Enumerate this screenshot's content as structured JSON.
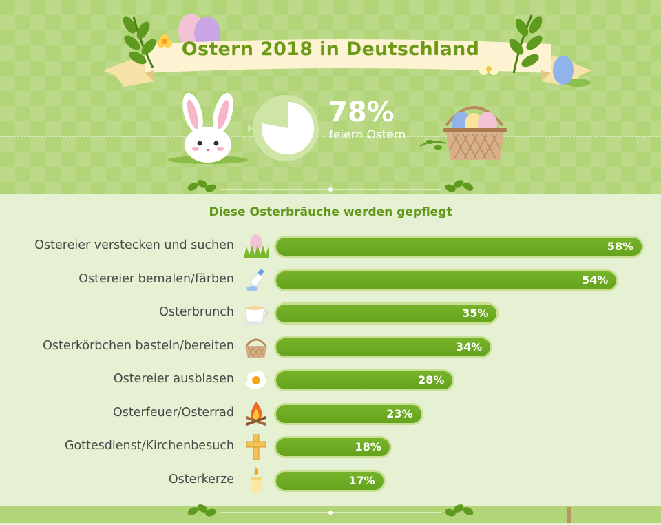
{
  "title": "Ostern 2018 in Deutschland",
  "stat": {
    "value": "78%",
    "label": "feiern Ostern",
    "fraction": 0.78
  },
  "chart_data": {
    "type": "bar",
    "orientation": "horizontal",
    "title": "Diese Osterbräuche werden gepflegt",
    "categories": [
      "Ostereier verstecken und suchen",
      "Ostereier bemalen/färben",
      "Osterbrunch",
      "Osterkörbchen basteln/bereiten",
      "Ostereier ausblasen",
      "Osterfeuer/Osterrad",
      "Gottesdienst/Kirchenbesuch",
      "Osterkerze"
    ],
    "values": [
      58,
      54,
      35,
      34,
      28,
      23,
      18,
      17
    ],
    "value_labels": [
      "58%",
      "54%",
      "35%",
      "34%",
      "28%",
      "23%",
      "18%",
      "17%"
    ],
    "icons": [
      "egg-in-grass-icon",
      "paint-tube-icon",
      "coffee-cup-icon",
      "basket-icon",
      "fried-egg-icon",
      "bonfire-icon",
      "cross-icon",
      "candle-icon"
    ],
    "xlim": [
      0,
      58
    ],
    "colors": {
      "bar": "#6eab23",
      "track": "#c8e093"
    }
  }
}
